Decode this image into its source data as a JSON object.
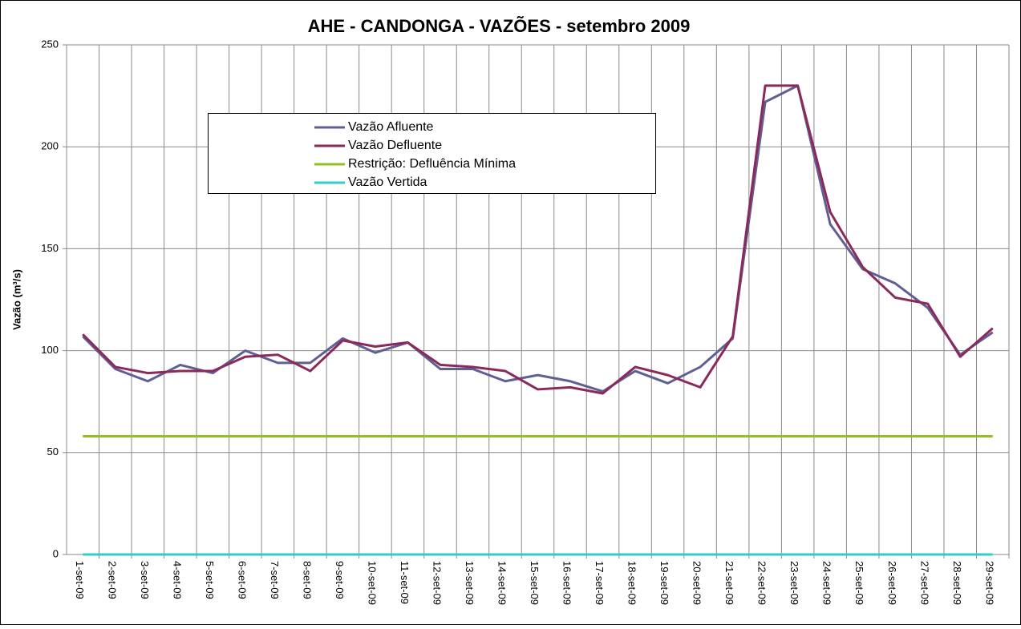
{
  "chart_data": {
    "type": "line",
    "title": "AHE - CANDONGA - VAZÕES - setembro 2009",
    "y_label": "Vazão (m³/s)",
    "categories": [
      "1-set-09",
      "2-set-09",
      "3-set-09",
      "4-set-09",
      "5-set-09",
      "6-set-09",
      "7-set-09",
      "8-set-09",
      "9-set-09",
      "10-set-09",
      "11-set-09",
      "12-set-09",
      "13-set-09",
      "14-set-09",
      "15-set-09",
      "16-set-09",
      "17-set-09",
      "18-set-09",
      "19-set-09",
      "20-set-09",
      "21-set-09",
      "22-set-09",
      "23-set-09",
      "24-set-09",
      "25-set-09",
      "26-set-09",
      "27-set-09",
      "28-set-09",
      "29-set-09"
    ],
    "series": [
      {
        "name": "Vazão Afluente",
        "color": "#5f5f96",
        "values": [
          107,
          91,
          85,
          93,
          89,
          100,
          94,
          94,
          106,
          99,
          104,
          91,
          91,
          85,
          88,
          85,
          80,
          90,
          84,
          92,
          106,
          222,
          230,
          162,
          140,
          133,
          121,
          98,
          109
        ]
      },
      {
        "name": "Vazão Defluente",
        "color": "#8b2a5a",
        "values": [
          108,
          92,
          89,
          90,
          90,
          97,
          98,
          90,
          105,
          102,
          104,
          93,
          92,
          90,
          81,
          82,
          79,
          92,
          88,
          82,
          107,
          230,
          230,
          168,
          141,
          126,
          123,
          97,
          111
        ]
      },
      {
        "name": "Restrição: Defluência Mínima",
        "color": "#92c020",
        "values": [
          58,
          58,
          58,
          58,
          58,
          58,
          58,
          58,
          58,
          58,
          58,
          58,
          58,
          58,
          58,
          58,
          58,
          58,
          58,
          58,
          58,
          58,
          58,
          58,
          58,
          58,
          58,
          58,
          58
        ]
      },
      {
        "name": "Vazão Vertida",
        "color": "#33cccc",
        "values": [
          0,
          0,
          0,
          0,
          0,
          0,
          0,
          0,
          0,
          0,
          0,
          0,
          0,
          0,
          0,
          0,
          0,
          0,
          0,
          0,
          0,
          0,
          0,
          0,
          0,
          0,
          0,
          0,
          0
        ]
      }
    ],
    "ylim": [
      0,
      250
    ],
    "yticks": [
      0,
      50,
      100,
      150,
      200,
      250
    ],
    "grid": true
  }
}
